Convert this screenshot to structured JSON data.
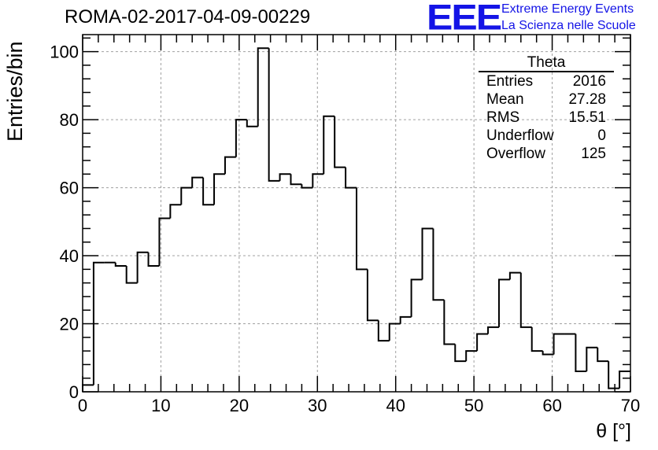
{
  "header": {
    "title": "ROMA-02-2017-04-09-00229",
    "logo_text": "EEE",
    "logo_line1": "Extreme Energy Events",
    "logo_line2": "La Scienza nelle Scuole"
  },
  "stats_box": {
    "title": "Theta",
    "rows": [
      {
        "label": "Entries",
        "value": "2016"
      },
      {
        "label": "Mean",
        "value": "27.28"
      },
      {
        "label": "RMS",
        "value": "15.51"
      },
      {
        "label": "Underflow",
        "value": "0"
      },
      {
        "label": "Overflow",
        "value": "125"
      }
    ]
  },
  "colors": {
    "line": "#000000",
    "grid": "#a0a0a0",
    "logo": "#1414e6"
  },
  "chart_data": {
    "type": "bar",
    "style": "step-histogram",
    "xlabel": "θ [°]",
    "ylabel": "Entries/bin",
    "xlim": [
      0,
      70
    ],
    "ylim": [
      0,
      105
    ],
    "grid": true,
    "bin_width": 1.4,
    "x_ticks": [
      0,
      10,
      20,
      30,
      40,
      50,
      60,
      70
    ],
    "y_ticks": [
      0,
      20,
      40,
      60,
      80,
      100
    ],
    "values": [
      2,
      38,
      38,
      37,
      32,
      41,
      37,
      51,
      55,
      60,
      63,
      55,
      64,
      69,
      80,
      78,
      101,
      62,
      64,
      61,
      60,
      64,
      81,
      66,
      60,
      36,
      21,
      15,
      20,
      22,
      33,
      48,
      27,
      14,
      9,
      12,
      17,
      19,
      33,
      35,
      19,
      12,
      11,
      17,
      17,
      6,
      13,
      9,
      1,
      6
    ]
  }
}
